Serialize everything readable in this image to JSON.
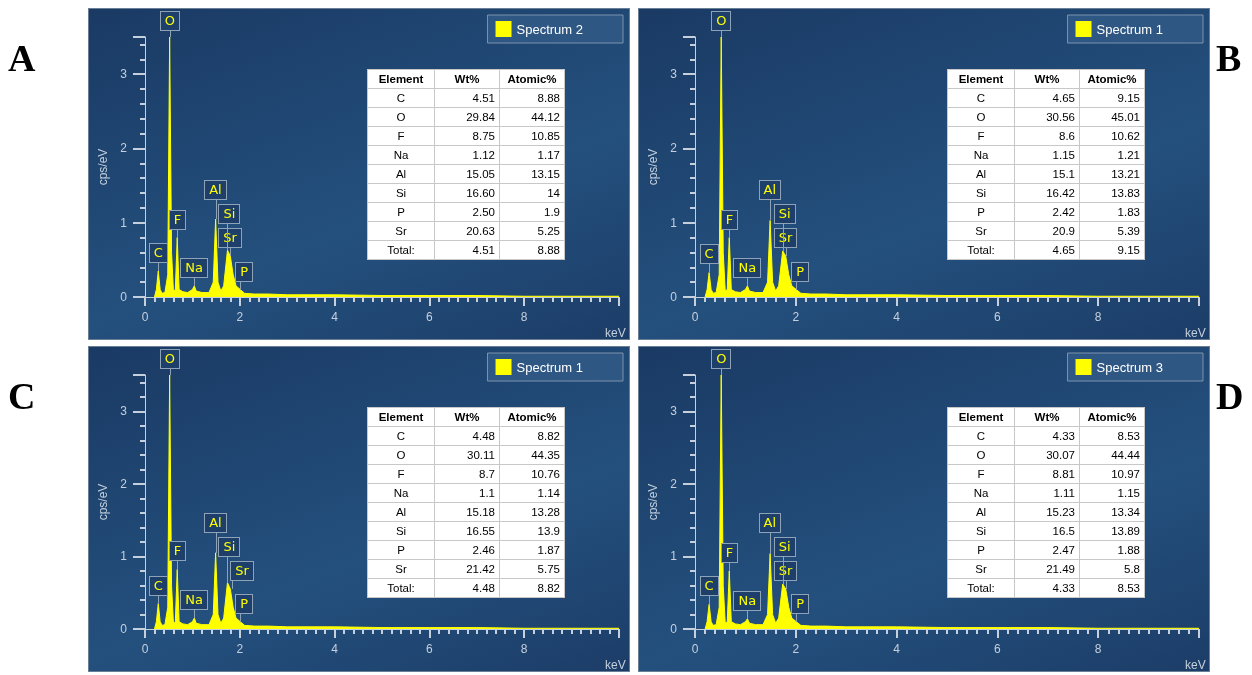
{
  "chart_data": [
    {
      "type": "area",
      "title": "A",
      "ylabel": "cps/eV",
      "xlabel": "keV",
      "xlim": [
        0,
        10
      ],
      "xticks": [
        0,
        2,
        4,
        6,
        8
      ],
      "ylim": [
        0,
        3.5
      ],
      "yticks": [
        0,
        1,
        2,
        3
      ],
      "legend": "top right",
      "series": [
        {
          "name": "Spectrum 2",
          "color": "#ffff00",
          "x": [
            0.2,
            0.24,
            0.28,
            0.32,
            0.36,
            0.42,
            0.48,
            0.52,
            0.56,
            0.6,
            0.64,
            0.68,
            0.72,
            0.8,
            0.9,
            1.0,
            1.04,
            1.08,
            1.2,
            1.35,
            1.44,
            1.49,
            1.54,
            1.6,
            1.66,
            1.74,
            1.8,
            1.86,
            1.92,
            2.01,
            2.1,
            2.3,
            2.6,
            3,
            4,
            5,
            6,
            7,
            8,
            9,
            10
          ],
          "values": [
            0,
            0.1,
            0.35,
            0.1,
            0.05,
            0.06,
            0.3,
            3.5,
            0.6,
            0.08,
            0.1,
            0.8,
            0.1,
            0.07,
            0.06,
            0.1,
            0.15,
            0.08,
            0.06,
            0.06,
            0.2,
            1.05,
            0.2,
            0.08,
            0.15,
            0.63,
            0.55,
            0.3,
            0.15,
            0.1,
            0.05,
            0.04,
            0.04,
            0.03,
            0.03,
            0.02,
            0.02,
            0.02,
            0.01,
            0.01,
            0.01
          ]
        }
      ],
      "annotations": [
        {
          "text": "C",
          "x": 0.28,
          "y": 0.35
        },
        {
          "text": "O",
          "x": 0.52,
          "y": 3.5
        },
        {
          "text": "F",
          "x": 0.68,
          "y": 0.8
        },
        {
          "text": "Na",
          "x": 1.04,
          "y": 0.15
        },
        {
          "text": "Al",
          "x": 1.49,
          "y": 1.05
        },
        {
          "text": "Si",
          "x": 1.74,
          "y": 0.63
        },
        {
          "text": "Sr",
          "x": 1.8,
          "y": 0.55
        },
        {
          "text": "P",
          "x": 2.01,
          "y": 0.1
        },
        "Element",
        "Wt%",
        "Atomic%",
        "C",
        "4.51",
        "8.88",
        "O",
        "29.84",
        "44.12",
        "F",
        "8.75",
        "10.85",
        "Na",
        "1.12",
        "1.17",
        "Al",
        "15.05",
        "13.15",
        "Si",
        "16.60",
        "14",
        "P",
        "2.50",
        "1.9",
        "Sr",
        "20.63",
        "5.25",
        "Total:",
        "4.51",
        "8.88"
      ]
    },
    {
      "type": "area",
      "title": "B",
      "ylabel": "cps/eV",
      "xlabel": "keV",
      "xlim": [
        0,
        10
      ],
      "xticks": [
        0,
        2,
        4,
        6,
        8
      ],
      "ylim": [
        0,
        3.5
      ],
      "yticks": [
        0,
        1,
        2,
        3
      ],
      "legend": "top right",
      "series": [
        {
          "name": "Spectrum 1",
          "color": "#ffff00",
          "x": [
            0.2,
            0.24,
            0.28,
            0.32,
            0.36,
            0.42,
            0.48,
            0.52,
            0.56,
            0.6,
            0.64,
            0.68,
            0.72,
            0.8,
            0.9,
            1.0,
            1.04,
            1.08,
            1.2,
            1.35,
            1.44,
            1.49,
            1.54,
            1.6,
            1.66,
            1.74,
            1.8,
            1.86,
            1.92,
            2.01,
            2.1,
            2.3,
            2.6,
            3,
            4,
            5,
            6,
            7,
            8,
            9,
            10
          ],
          "values": [
            0,
            0.1,
            0.33,
            0.1,
            0.05,
            0.06,
            0.3,
            3.5,
            0.6,
            0.08,
            0.1,
            0.8,
            0.1,
            0.07,
            0.06,
            0.1,
            0.15,
            0.08,
            0.06,
            0.06,
            0.2,
            1.03,
            0.2,
            0.08,
            0.15,
            0.62,
            0.55,
            0.3,
            0.15,
            0.1,
            0.05,
            0.04,
            0.04,
            0.03,
            0.03,
            0.02,
            0.02,
            0.02,
            0.01,
            0.01,
            0.01
          ]
        }
      ],
      "annotations": [
        {
          "text": "C",
          "x": 0.28,
          "y": 0.33
        },
        {
          "text": "O",
          "x": 0.52,
          "y": 3.5
        },
        {
          "text": "F",
          "x": 0.68,
          "y": 0.8
        },
        {
          "text": "Na",
          "x": 1.04,
          "y": 0.15
        },
        {
          "text": "Al",
          "x": 1.49,
          "y": 1.03
        },
        {
          "text": "Si",
          "x": 1.74,
          "y": 0.62
        },
        {
          "text": "Sr",
          "x": 1.8,
          "y": 0.55
        },
        {
          "text": "P",
          "x": 2.01,
          "y": 0.1
        },
        "Element",
        "Wt%",
        "Atomic%",
        "C",
        "4.65",
        "9.15",
        "O",
        "30.56",
        "45.01",
        "F",
        "8.6",
        "10.62",
        "Na",
        "1.15",
        "1.21",
        "Al",
        "15.1",
        "13.21",
        "Si",
        "16.42",
        "13.83",
        "P",
        "2.42",
        "1.83",
        "Sr",
        "20.9",
        "5.39",
        "Total:",
        "4.65",
        "9.15"
      ]
    },
    {
      "type": "area",
      "title": "C",
      "ylabel": "cps/eV",
      "xlabel": "keV",
      "xlim": [
        0,
        10
      ],
      "xticks": [
        0,
        2,
        4,
        6,
        8
      ],
      "ylim": [
        0,
        3.5
      ],
      "yticks": [
        0,
        1,
        2,
        3
      ],
      "legend": "top right",
      "series": [
        {
          "name": "Spectrum 1",
          "color": "#ffff00",
          "x": [
            0.2,
            0.24,
            0.28,
            0.32,
            0.36,
            0.42,
            0.48,
            0.52,
            0.56,
            0.6,
            0.64,
            0.68,
            0.72,
            0.8,
            0.9,
            1.0,
            1.04,
            1.08,
            1.2,
            1.35,
            1.44,
            1.49,
            1.54,
            1.6,
            1.66,
            1.74,
            1.8,
            1.86,
            1.92,
            2.01,
            2.1,
            2.3,
            2.6,
            3,
            4,
            5,
            6,
            7,
            8,
            9,
            10
          ],
          "values": [
            0,
            0.1,
            0.35,
            0.1,
            0.05,
            0.06,
            0.3,
            3.5,
            0.6,
            0.08,
            0.1,
            0.82,
            0.1,
            0.07,
            0.06,
            0.1,
            0.15,
            0.08,
            0.06,
            0.06,
            0.2,
            1.05,
            0.2,
            0.08,
            0.15,
            0.64,
            0.55,
            0.3,
            0.15,
            0.1,
            0.05,
            0.04,
            0.04,
            0.03,
            0.03,
            0.02,
            0.02,
            0.02,
            0.01,
            0.01,
            0.01
          ]
        }
      ],
      "annotations": [
        {
          "text": "C",
          "x": 0.28,
          "y": 0.35
        },
        {
          "text": "O",
          "x": 0.52,
          "y": 3.5
        },
        {
          "text": "F",
          "x": 0.68,
          "y": 0.82
        },
        {
          "text": "Na",
          "x": 1.04,
          "y": 0.15
        },
        {
          "text": "Al",
          "x": 1.49,
          "y": 1.05
        },
        {
          "text": "Si",
          "x": 1.74,
          "y": 0.64
        },
        {
          "text": "Sr",
          "x": 1.8,
          "y": 0.55
        },
        {
          "text": "P",
          "x": 2.01,
          "y": 0.1
        },
        "Element",
        "Wt%",
        "Atomic%",
        "C",
        "4.48",
        "8.82",
        "O",
        "30.11",
        "44.35",
        "F",
        "8.7",
        "10.76",
        "Na",
        "1.1",
        "1.14",
        "Al",
        "15.18",
        "13.28",
        "Si",
        "16.55",
        "13.9",
        "P",
        "2.46",
        "1.87",
        "Sr",
        "21.42",
        "5.75",
        "Total:",
        "4.48",
        "8.82"
      ]
    },
    {
      "type": "area",
      "title": "D",
      "ylabel": "cps/eV",
      "xlabel": "keV",
      "xlim": [
        0,
        10
      ],
      "xticks": [
        0,
        2,
        4,
        6,
        8
      ],
      "ylim": [
        0,
        3.5
      ],
      "yticks": [
        0,
        1,
        2,
        3
      ],
      "legend": "top right",
      "series": [
        {
          "name": "Spectrum 3",
          "color": "#ffff00",
          "x": [
            0.2,
            0.24,
            0.28,
            0.32,
            0.36,
            0.42,
            0.48,
            0.52,
            0.56,
            0.6,
            0.64,
            0.68,
            0.72,
            0.8,
            0.9,
            1.0,
            1.04,
            1.08,
            1.2,
            1.35,
            1.44,
            1.49,
            1.54,
            1.6,
            1.66,
            1.74,
            1.8,
            1.86,
            1.92,
            2.01,
            2.1,
            2.3,
            2.6,
            3,
            4,
            5,
            6,
            7,
            8,
            9,
            10
          ],
          "values": [
            0,
            0.1,
            0.34,
            0.1,
            0.05,
            0.06,
            0.3,
            3.5,
            0.6,
            0.08,
            0.1,
            0.8,
            0.1,
            0.07,
            0.06,
            0.1,
            0.14,
            0.08,
            0.06,
            0.06,
            0.2,
            1.04,
            0.2,
            0.08,
            0.15,
            0.62,
            0.55,
            0.3,
            0.15,
            0.1,
            0.05,
            0.04,
            0.04,
            0.03,
            0.03,
            0.02,
            0.02,
            0.02,
            0.01,
            0.01,
            0.01
          ]
        }
      ],
      "annotations": [
        {
          "text": "C",
          "x": 0.28,
          "y": 0.34
        },
        {
          "text": "O",
          "x": 0.52,
          "y": 3.5
        },
        {
          "text": "F",
          "x": 0.68,
          "y": 0.8
        },
        {
          "text": "Na",
          "x": 1.04,
          "y": 0.14
        },
        {
          "text": "Al",
          "x": 1.49,
          "y": 1.04
        },
        {
          "text": "Si",
          "x": 1.74,
          "y": 0.62
        },
        {
          "text": "Sr",
          "x": 1.8,
          "y": 0.55
        },
        {
          "text": "P",
          "x": 2.01,
          "y": 0.1
        },
        "Element",
        "Wt%",
        "Atomic%",
        "C",
        "4.33",
        "8.53",
        "O",
        "30.07",
        "44.44",
        "F",
        "8.81",
        "10.97",
        "Na",
        "1.11",
        "1.15",
        "Al",
        "15.23",
        "13.34",
        "Si",
        "16.5",
        "13.89",
        "P",
        "2.47",
        "1.88",
        "Sr",
        "21.49",
        "5.8",
        "Total:",
        "4.33",
        "8.53"
      ]
    }
  ]
}
